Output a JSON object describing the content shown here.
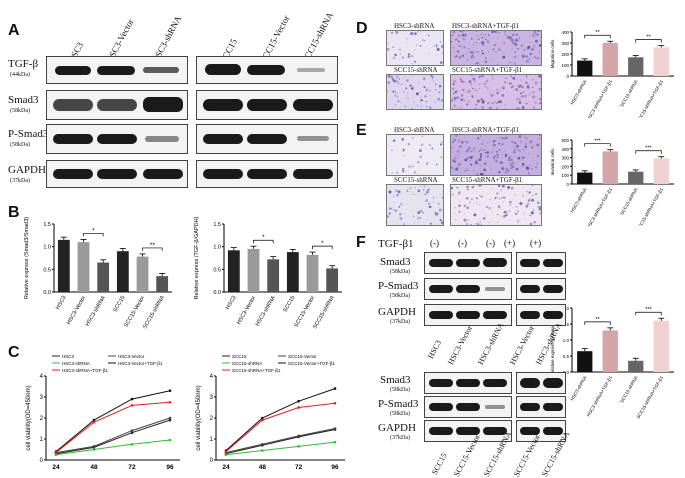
{
  "panels": {
    "A": "A",
    "B": "B",
    "C": "C",
    "D": "D",
    "E": "E",
    "F": "F"
  },
  "panel_a": {
    "lanes_left": [
      "HSC3",
      "HSC3-Vector",
      "HSC3-shRNA"
    ],
    "lanes_right": [
      "SCC15",
      "SCC15-Vector",
      "SCC15-shRNA"
    ],
    "rows": [
      {
        "name": "TGF-β",
        "kda": "(44kDa)"
      },
      {
        "name": "Smad3",
        "kda": "(58kDa)"
      },
      {
        "name": "P-Smad3",
        "kda": "(58kDa)"
      },
      {
        "name": "GAPDH",
        "kda": "(37kDa)"
      }
    ]
  },
  "chart_data": [
    {
      "id": "B1",
      "type": "bar",
      "ylabel": "Relative express (Smad3/Smad3)",
      "categories": [
        "HSC3",
        "HSC3-Vector",
        "HSC3-shRNA",
        "SCC15",
        "SCC15-Vector",
        "SCC15-shRNA"
      ],
      "values": [
        1.15,
        1.1,
        0.65,
        0.9,
        0.78,
        0.35
      ],
      "colors": [
        "#222222",
        "#9a9a9a",
        "#555555",
        "#222222",
        "#9a9a9a",
        "#555555"
      ],
      "ylim": [
        0,
        1.5
      ],
      "yticks": [
        "0.0",
        "0.5",
        "1.0",
        "1.5"
      ],
      "sig": [
        "*",
        "**"
      ]
    },
    {
      "id": "B2",
      "type": "bar",
      "ylabel": "Relative express (TGF-β/GAPDH)",
      "categories": [
        "HSC3",
        "HSC3-Vector",
        "HSC3-shRNA",
        "SCC15",
        "SCC15-Vector",
        "SCC15-shRNA"
      ],
      "values": [
        0.92,
        0.95,
        0.72,
        0.88,
        0.82,
        0.52
      ],
      "colors": [
        "#222222",
        "#9a9a9a",
        "#555555",
        "#222222",
        "#9a9a9a",
        "#555555"
      ],
      "ylim": [
        0,
        1.5
      ],
      "yticks": [
        "0.0",
        "0.5",
        "1.0",
        "1.5"
      ],
      "sig": [
        "*",
        "*"
      ]
    },
    {
      "id": "C1",
      "type": "line",
      "ylabel": "cell viability(OD=450nm)",
      "x": [
        24,
        48,
        72,
        96
      ],
      "ylim": [
        0,
        4
      ],
      "yticks": [
        "0",
        "1",
        "2",
        "3",
        "4"
      ],
      "series": [
        {
          "name": "HSC3",
          "color": "#222222",
          "values": [
            0.3,
            0.6,
            1.3,
            1.9
          ]
        },
        {
          "name": "HSC3-Vector",
          "color": "#444444",
          "values": [
            0.35,
            0.65,
            1.4,
            2.0
          ]
        },
        {
          "name": "HSC3-shRNA",
          "color": "#33bb33",
          "values": [
            0.25,
            0.5,
            0.75,
            0.95
          ]
        },
        {
          "name": "HSC3-Vector+TGF-β1",
          "color": "#111111",
          "values": [
            0.4,
            1.9,
            2.9,
            3.3
          ]
        },
        {
          "name": "HSC3-shRNA+TGF-β1",
          "color": "#dd2222",
          "values": [
            0.35,
            1.8,
            2.6,
            2.75
          ]
        }
      ]
    },
    {
      "id": "C2",
      "type": "line",
      "ylabel": "cell viability(OD=450nm)",
      "x": [
        24,
        48,
        72,
        96
      ],
      "ylim": [
        0,
        4
      ],
      "yticks": [
        "0",
        "1",
        "2",
        "3",
        "4"
      ],
      "series": [
        {
          "name": "SCC15",
          "color": "#222222",
          "values": [
            0.3,
            0.7,
            1.1,
            1.45
          ]
        },
        {
          "name": "SCC15-Vector",
          "color": "#444444",
          "values": [
            0.35,
            0.75,
            1.15,
            1.5
          ]
        },
        {
          "name": "SCC15-shRNA",
          "color": "#33bb33",
          "values": [
            0.25,
            0.45,
            0.65,
            0.85
          ]
        },
        {
          "name": "SCC15-Vector+TGF-β1",
          "color": "#111111",
          "values": [
            0.45,
            2.0,
            2.8,
            3.4
          ]
        },
        {
          "name": "SCC15-shRNA+TGF-β1",
          "color": "#dd2222",
          "values": [
            0.4,
            1.9,
            2.5,
            2.7
          ]
        }
      ]
    },
    {
      "id": "D",
      "type": "bar",
      "ylabel": "Migration cells",
      "categories": [
        "HSC3-shRNA",
        "HSC3-shRNA+TGF-β1",
        "SCC15-shRNA",
        "SCC15-shRNA+TGF-β1"
      ],
      "values": [
        140,
        300,
        170,
        260
      ],
      "colors": [
        "#111111",
        "#d4a5a7",
        "#666666",
        "#f0d0d0"
      ],
      "ylim": [
        0,
        400
      ],
      "yticks": [
        "0",
        "100",
        "200",
        "300",
        "400"
      ],
      "sig": [
        "**",
        "**"
      ]
    },
    {
      "id": "E",
      "type": "bar",
      "ylabel": "Invasion cells",
      "categories": [
        "HSC3-shRNA",
        "HSC3-shRNA+TGF-β1",
        "SCC15-shRNA",
        "SCC15-shRNA+TGF-β1"
      ],
      "values": [
        130,
        370,
        140,
        290
      ],
      "colors": [
        "#111111",
        "#d4a5a7",
        "#666666",
        "#f0d0d0"
      ],
      "ylim": [
        0,
        500
      ],
      "yticks": [
        "0",
        "100",
        "200",
        "300",
        "400",
        "500"
      ],
      "sig": [
        "***",
        "***"
      ]
    },
    {
      "id": "F",
      "type": "bar",
      "ylabel": "Relative express (p-Smad3/Smad3)",
      "categories": [
        "HSC3-shRNA",
        "HSC3-shRNA+TGF-β1",
        "SCC15-shRNA",
        "SCC15-shRNA+TGF-β1"
      ],
      "values": [
        0.65,
        1.3,
        0.35,
        1.6
      ],
      "colors": [
        "#111111",
        "#d4a5a7",
        "#666666",
        "#f0d0d0"
      ],
      "ylim": [
        0,
        2
      ],
      "yticks": [
        "0.0",
        "0.5",
        "1.0",
        "1.5",
        "2.0"
      ],
      "sig": [
        "**",
        "***"
      ]
    }
  ],
  "panel_d": {
    "titles": [
      "HSC3-shRNA",
      "HSC3-shRNA+TGF-β1",
      "SCC15-shRNA",
      "SCC15-shRNA+TGF-β1"
    ]
  },
  "panel_e": {
    "titles": [
      "HSC3-shRNA",
      "HSC3-shRNA+TGF-β1",
      "SCC15-shRNA",
      "SCC15-shRNA+TGF-β1"
    ]
  },
  "panel_f": {
    "tgf_label": "TGF-β1",
    "treat": [
      "(-)",
      "(-)",
      "(-)",
      "(+)",
      "(+)"
    ],
    "rows_top": [
      {
        "name": "Smad3",
        "kda": "(58kDa)"
      },
      {
        "name": "P-Smad3",
        "kda": "(58kDa)"
      },
      {
        "name": "GAPDH",
        "kda": "(37kDa)"
      }
    ],
    "lanes_top_left": [
      "HSC3",
      "HSC3-Vector",
      "HSC3-shRNA"
    ],
    "lanes_top_right": [
      "HSC3-Vector",
      "HSC3-shRNA"
    ],
    "rows_bottom": [
      {
        "name": "Smad3",
        "kda": "(58kDa)"
      },
      {
        "name": "P-Smad3",
        "kda": "(58kDa)"
      },
      {
        "name": "GAPDH",
        "kda": "(37kDa)"
      }
    ],
    "lanes_bottom_left": [
      "SCC15",
      "SCC15-Vector",
      "SCC15-shRNA"
    ],
    "lanes_bottom_right": [
      "SCC15-Vector",
      "SCC15-shRNA"
    ]
  }
}
